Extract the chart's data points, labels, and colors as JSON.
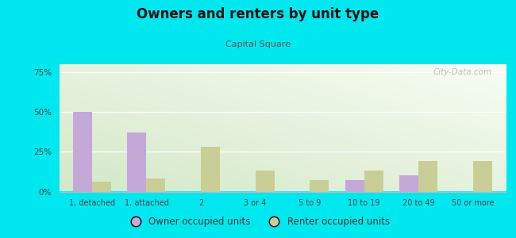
{
  "title": "Owners and renters by unit type",
  "subtitle": "Capital Square",
  "categories": [
    "1, detached",
    "1, attached",
    "2",
    "3 or 4",
    "5 to 9",
    "10 to 19",
    "20 to 49",
    "50 or more"
  ],
  "owner_values": [
    50,
    37,
    0,
    0,
    0,
    7,
    10,
    0
  ],
  "renter_values": [
    6,
    8,
    28,
    13,
    7,
    13,
    19,
    19
  ],
  "owner_color": "#c4a8d8",
  "renter_color": "#c8ce96",
  "ylim": [
    0,
    80
  ],
  "yticks": [
    0,
    25,
    50,
    75
  ],
  "ytick_labels": [
    "0%",
    "25%",
    "50%",
    "75%"
  ],
  "background_outer": "#00e8ef",
  "background_inner_top_left": "#d4e8c8",
  "background_inner_bottom_right": "#f8fdf4",
  "bar_width": 0.35,
  "legend_owner": "Owner occupied units",
  "legend_renter": "Renter occupied units",
  "watermark": "City-Data.com"
}
